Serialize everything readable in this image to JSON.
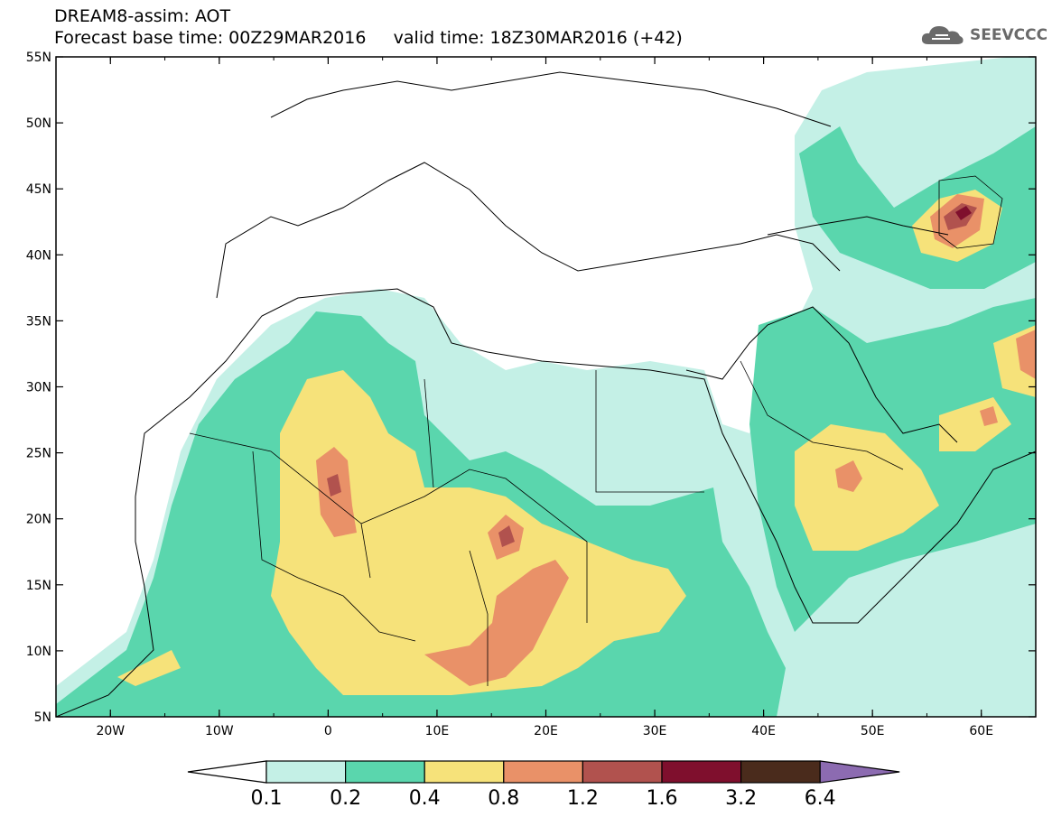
{
  "header": {
    "title_line1": "DREAM8-assim: AOT",
    "title_line2": "Forecast base time: 00Z29MAR2016     valid time: 18Z30MAR2016 (+42)",
    "logo_text": "SEEVCCC"
  },
  "axes": {
    "lat_labels": [
      "55N",
      "50N",
      "45N",
      "40N",
      "35N",
      "30N",
      "25N",
      "20N",
      "15N",
      "10N",
      "5N"
    ],
    "lon_labels": [
      "20W",
      "10W",
      "0",
      "10E",
      "20E",
      "30E",
      "40E",
      "50E",
      "60E"
    ]
  },
  "legend": {
    "labels": [
      "0.1",
      "0.2",
      "0.4",
      "0.8",
      "1.2",
      "1.6",
      "3.2",
      "6.4"
    ],
    "colors": [
      "#ffffff",
      "#c4f0e6",
      "#5ad6ad",
      "#f6e27a",
      "#e99168",
      "#b1524e",
      "#7f0f2d",
      "#4a2b1c",
      "#8c6bb1"
    ]
  }
}
